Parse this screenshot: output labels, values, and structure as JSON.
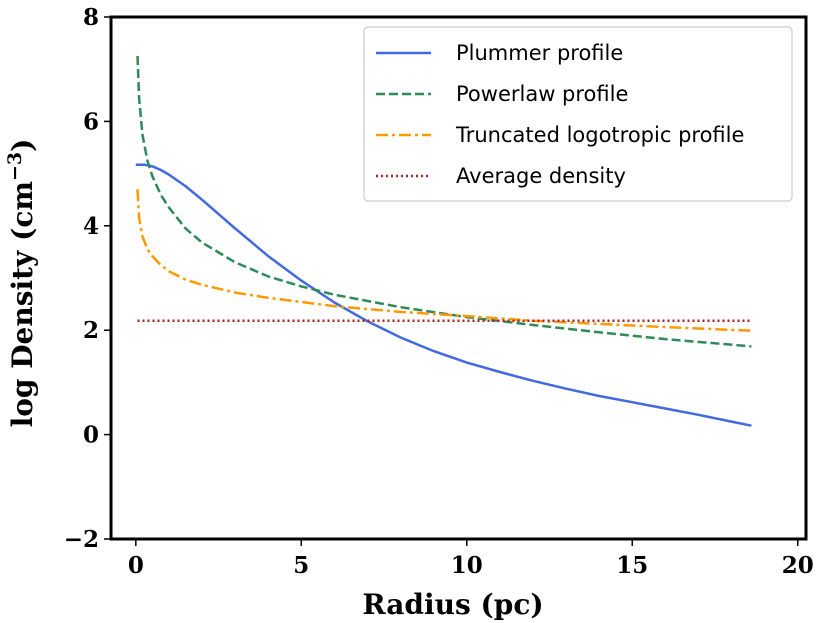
{
  "chart_data": {
    "type": "line",
    "title": "",
    "xlabel": "Radius (pc)",
    "ylabel": "log Density (cm",
    "ylabel_unit": "−3",
    "ylabel_close": ")",
    "xlim": [
      -0.75,
      20.25
    ],
    "ylim": [
      -2,
      8
    ],
    "xticks": [
      0,
      5,
      10,
      15,
      20
    ],
    "yticks": [
      -2,
      0,
      2,
      4,
      6,
      8
    ],
    "xtick_labels": [
      "0",
      "5",
      "10",
      "15",
      "20"
    ],
    "ytick_labels": [
      "−2",
      "0",
      "2",
      "4",
      "6",
      "8"
    ],
    "grid": false,
    "legend_position": "top-right",
    "series": [
      {
        "name": "Plummer profile",
        "color": "#4169e1",
        "style": "solid",
        "x": [
          0,
          0.25,
          0.5,
          0.75,
          1,
          1.5,
          2,
          3,
          4,
          5,
          6,
          7,
          8,
          9,
          10,
          11,
          12,
          13,
          14,
          15,
          16,
          17,
          18,
          18.6
        ],
        "y": [
          5.17,
          5.17,
          5.14,
          5.07,
          4.98,
          4.76,
          4.5,
          3.95,
          3.42,
          2.95,
          2.53,
          2.17,
          1.86,
          1.6,
          1.38,
          1.2,
          1.03,
          0.88,
          0.74,
          0.62,
          0.5,
          0.38,
          0.25,
          0.17
        ]
      },
      {
        "name": "Powerlaw profile",
        "color": "#2e8b57",
        "style": "dashed",
        "x": [
          0.05,
          0.1,
          0.2,
          0.35,
          0.5,
          0.75,
          1,
          1.5,
          2,
          3,
          4,
          5,
          6,
          8,
          10,
          12,
          14,
          16,
          18.6
        ],
        "y": [
          7.25,
          6.45,
          5.75,
          5.25,
          4.95,
          4.6,
          4.35,
          3.95,
          3.68,
          3.3,
          3.03,
          2.84,
          2.68,
          2.44,
          2.25,
          2.1,
          1.96,
          1.83,
          1.69
        ]
      },
      {
        "name": "Truncated logotropic profile",
        "color": "#ff9900",
        "style": "dashdot",
        "x": [
          0.05,
          0.1,
          0.2,
          0.35,
          0.5,
          0.75,
          1,
          1.5,
          2,
          3,
          4,
          5,
          6,
          8,
          10,
          12,
          14,
          16,
          18.6
        ],
        "y": [
          4.7,
          4.15,
          3.8,
          3.55,
          3.42,
          3.25,
          3.13,
          2.97,
          2.87,
          2.72,
          2.62,
          2.54,
          2.46,
          2.35,
          2.27,
          2.18,
          2.12,
          2.06,
          1.99
        ]
      },
      {
        "name": "Average density",
        "color": "#b22222",
        "style": "dotted",
        "x": [
          0.05,
          18.6
        ],
        "y": [
          2.18,
          2.18
        ]
      }
    ]
  }
}
